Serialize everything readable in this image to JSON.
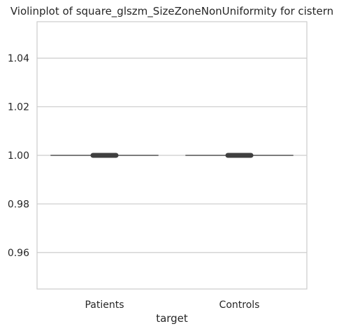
{
  "chart_data": {
    "type": "violin",
    "title": "Violinplot of square_glszm_SizeZoneNonUniformity for cistern",
    "xlabel": "target",
    "ylabel": "",
    "categories": [
      "Patients",
      "Controls"
    ],
    "ylim": [
      0.945,
      1.055
    ],
    "yticks": [
      0.96,
      0.98,
      1.0,
      1.02,
      1.04
    ],
    "ytick_labels": [
      "0.96",
      "0.98",
      "1.00",
      "1.02",
      "1.04"
    ],
    "grid": true,
    "values": [
      1.0,
      1.0
    ],
    "colors": {
      "grid": "#cccccc",
      "frame": "#cccccc",
      "box": "#3f3f3f",
      "line": "#555555",
      "text": "#262626"
    }
  }
}
